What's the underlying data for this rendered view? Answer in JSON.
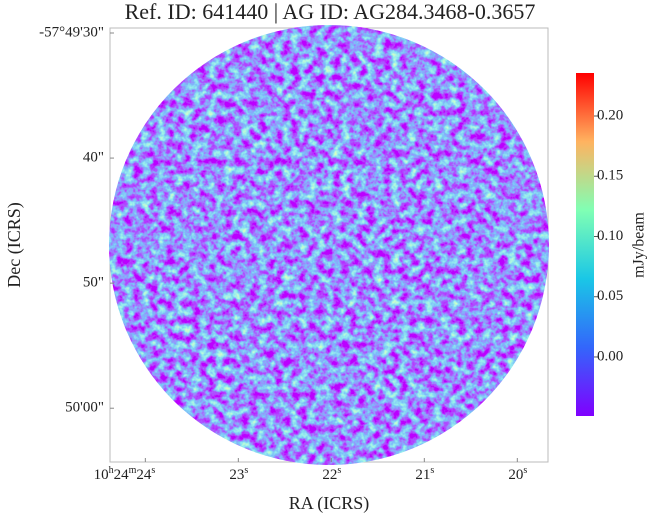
{
  "chart_data": {
    "type": "image",
    "title": "Ref. ID: 641440 | AG ID: AG284.3468-0.3657",
    "xlabel": "RA (ICRS)",
    "ylabel": "Dec (ICRS)",
    "xlim": [
      24.38,
      19.67
    ],
    "xticks": [
      {
        "value": 24,
        "label": "10h24m24s"
      },
      {
        "value": 23,
        "label": "23s"
      },
      {
        "value": 22,
        "label": "22s"
      },
      {
        "value": 21,
        "label": "21s"
      },
      {
        "value": 20,
        "label": "20s"
      }
    ],
    "ylim": [
      29.6,
      64.3
    ],
    "yticks": [
      {
        "value": 30,
        "label": "-57°49'30\""
      },
      {
        "value": 40,
        "label": "40\""
      },
      {
        "value": 50,
        "label": "50\""
      },
      {
        "value": 60,
        "label": "50'00\""
      }
    ],
    "colorbar": {
      "label": "mJy/beam",
      "colormap": "rainbow",
      "clim": [
        -0.049,
        0.2357
      ],
      "ticks": [
        {
          "value": 0,
          "label": "0.00"
        },
        0.05,
        {
          "value": 0.1,
          "label": "0.10"
        },
        0.15,
        {
          "value": 0.2,
          "label": "0.20"
        }
      ]
    }
  }
}
